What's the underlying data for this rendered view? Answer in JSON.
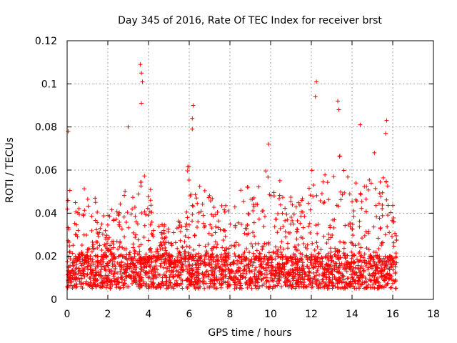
{
  "chart_data": {
    "type": "scatter",
    "title": "Day 345 of 2016, Rate Of TEC Index for receiver brst",
    "xlabel": "GPS time / hours",
    "ylabel": "ROTI / TECUs",
    "xlim": [
      0,
      18
    ],
    "ylim": [
      0,
      0.12
    ],
    "x_ticks": [
      "0",
      "2",
      "4",
      "6",
      "8",
      "10",
      "12",
      "14",
      "16",
      "18"
    ],
    "y_ticks": [
      "0",
      "0.02",
      "0.04",
      "0.06",
      "0.08",
      "0.1",
      "0.12"
    ],
    "grid": true,
    "marker": "+",
    "marker_color": "#ff0000",
    "data_extent_hours": [
      0,
      16.2
    ],
    "notable_peaks": [
      {
        "x": 0.05,
        "y": 0.078
      },
      {
        "x": 3.0,
        "y": 0.08
      },
      {
        "x": 3.6,
        "y": 0.109
      },
      {
        "x": 3.65,
        "y": 0.105
      },
      {
        "x": 3.7,
        "y": 0.101
      },
      {
        "x": 3.65,
        "y": 0.091
      },
      {
        "x": 6.2,
        "y": 0.09
      },
      {
        "x": 6.15,
        "y": 0.084
      },
      {
        "x": 6.15,
        "y": 0.079
      },
      {
        "x": 9.9,
        "y": 0.072
      },
      {
        "x": 12.25,
        "y": 0.101
      },
      {
        "x": 12.2,
        "y": 0.094
      },
      {
        "x": 13.3,
        "y": 0.092
      },
      {
        "x": 13.35,
        "y": 0.088
      },
      {
        "x": 14.4,
        "y": 0.081
      },
      {
        "x": 15.7,
        "y": 0.083
      },
      {
        "x": 15.65,
        "y": 0.077
      },
      {
        "x": 15.1,
        "y": 0.068
      }
    ],
    "envelope": [
      {
        "x": 0.0,
        "y": 0.066
      },
      {
        "x": 0.5,
        "y": 0.05
      },
      {
        "x": 1.0,
        "y": 0.055
      },
      {
        "x": 1.5,
        "y": 0.045
      },
      {
        "x": 2.0,
        "y": 0.04
      },
      {
        "x": 2.5,
        "y": 0.045
      },
      {
        "x": 3.0,
        "y": 0.06
      },
      {
        "x": 3.5,
        "y": 0.065
      },
      {
        "x": 4.0,
        "y": 0.055
      },
      {
        "x": 4.5,
        "y": 0.035
      },
      {
        "x": 5.0,
        "y": 0.035
      },
      {
        "x": 5.5,
        "y": 0.04
      },
      {
        "x": 6.0,
        "y": 0.065
      },
      {
        "x": 6.5,
        "y": 0.055
      },
      {
        "x": 7.0,
        "y": 0.05
      },
      {
        "x": 7.5,
        "y": 0.045
      },
      {
        "x": 8.0,
        "y": 0.045
      },
      {
        "x": 8.5,
        "y": 0.06
      },
      {
        "x": 9.0,
        "y": 0.05
      },
      {
        "x": 9.5,
        "y": 0.055
      },
      {
        "x": 10.0,
        "y": 0.065
      },
      {
        "x": 10.5,
        "y": 0.055
      },
      {
        "x": 11.0,
        "y": 0.05
      },
      {
        "x": 11.5,
        "y": 0.045
      },
      {
        "x": 12.0,
        "y": 0.06
      },
      {
        "x": 12.5,
        "y": 0.06
      },
      {
        "x": 13.0,
        "y": 0.055
      },
      {
        "x": 13.5,
        "y": 0.07
      },
      {
        "x": 14.0,
        "y": 0.05
      },
      {
        "x": 14.5,
        "y": 0.065
      },
      {
        "x": 15.0,
        "y": 0.055
      },
      {
        "x": 15.5,
        "y": 0.06
      },
      {
        "x": 16.0,
        "y": 0.05
      },
      {
        "x": 16.2,
        "y": 0.03
      }
    ],
    "baseline_band": [
      0.005,
      0.02
    ]
  }
}
